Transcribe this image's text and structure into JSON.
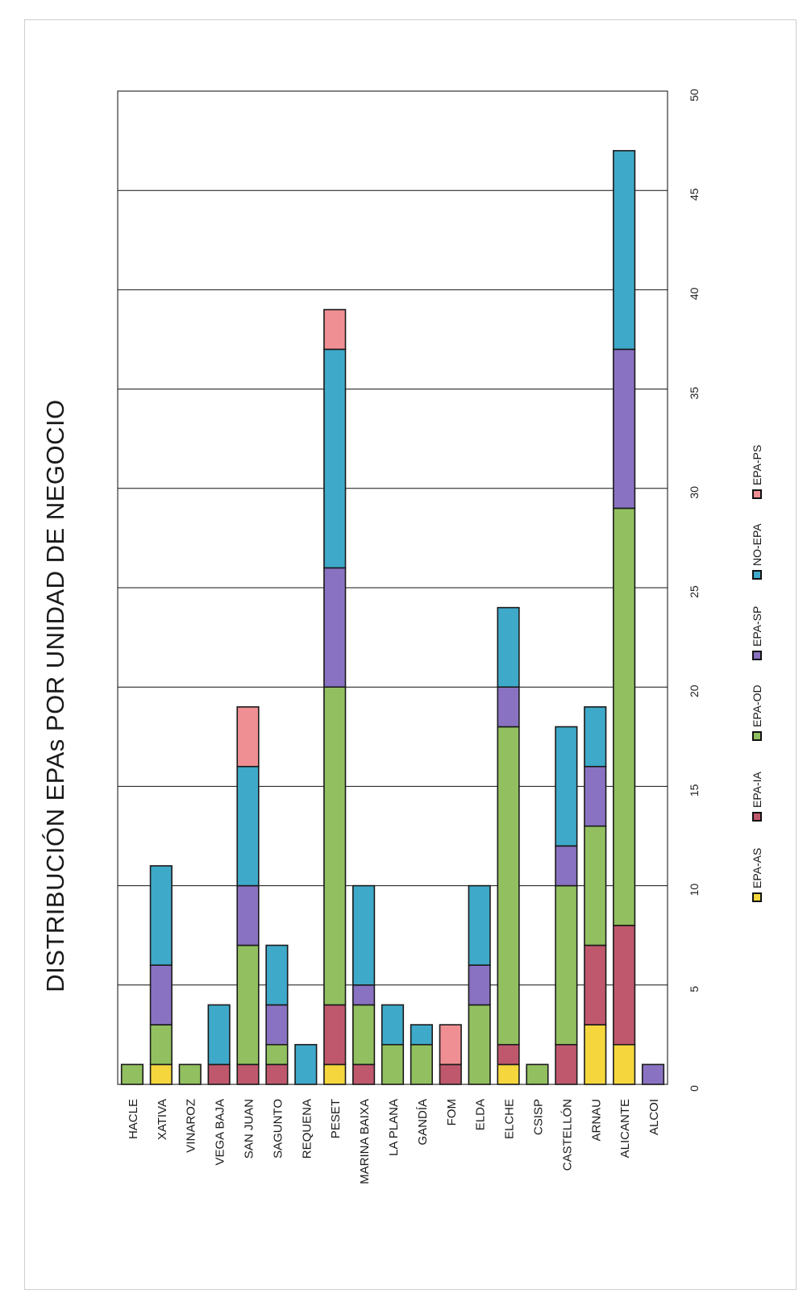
{
  "chart_data": {
    "type": "bar",
    "orientation": "horizontal-stacked",
    "title": "DISTRIBUCIÓN EPAs POR UNIDAD DE NEGOCIO",
    "xlim": [
      0,
      50
    ],
    "xticks": [
      0,
      5,
      10,
      15,
      20,
      25,
      30,
      35,
      40,
      45,
      50
    ],
    "grid": true,
    "legend_position": "bottom",
    "categories": [
      "HACLE",
      "XATIVA",
      "VINAROZ",
      "VEGA BAJA",
      "SAN JUAN",
      "SAGUNTO",
      "REQUENA",
      "PESET",
      "MARINA BAIXA",
      "LA PLANA",
      "GANDÍA",
      "FOM",
      "ELDA",
      "ELCHE",
      "CSISP",
      "CASTELLÓN",
      "ARNAU",
      "ALICANTE",
      "ALCOI"
    ],
    "series": [
      {
        "name": "EPA-AS",
        "color": "#f5d63d",
        "values": [
          0,
          1,
          0,
          0,
          0,
          0,
          0,
          1,
          0,
          0,
          0,
          0,
          0,
          1,
          0,
          0,
          3,
          2,
          0
        ]
      },
      {
        "name": "EPA-IA",
        "color": "#c0586d",
        "values": [
          0,
          0,
          0,
          1,
          1,
          1,
          0,
          3,
          1,
          0,
          0,
          1,
          0,
          1,
          0,
          2,
          4,
          6,
          0
        ]
      },
      {
        "name": "EPA-OD",
        "color": "#92c060",
        "values": [
          1,
          2,
          1,
          0,
          6,
          1,
          0,
          16,
          3,
          2,
          2,
          0,
          4,
          16,
          1,
          8,
          6,
          21,
          0
        ]
      },
      {
        "name": "EPA-SP",
        "color": "#8a72c2",
        "values": [
          0,
          3,
          0,
          0,
          3,
          2,
          0,
          6,
          1,
          0,
          0,
          0,
          2,
          2,
          0,
          2,
          3,
          8,
          1
        ]
      },
      {
        "name": "NO-EPA",
        "color": "#3fa9c9",
        "values": [
          0,
          5,
          0,
          3,
          6,
          3,
          2,
          11,
          5,
          2,
          1,
          0,
          4,
          4,
          0,
          6,
          3,
          10,
          0
        ]
      },
      {
        "name": "EPA-PS",
        "color": "#ef8f93",
        "values": [
          0,
          0,
          0,
          0,
          3,
          0,
          0,
          2,
          0,
          0,
          0,
          2,
          0,
          0,
          0,
          0,
          0,
          0,
          0
        ]
      }
    ]
  }
}
